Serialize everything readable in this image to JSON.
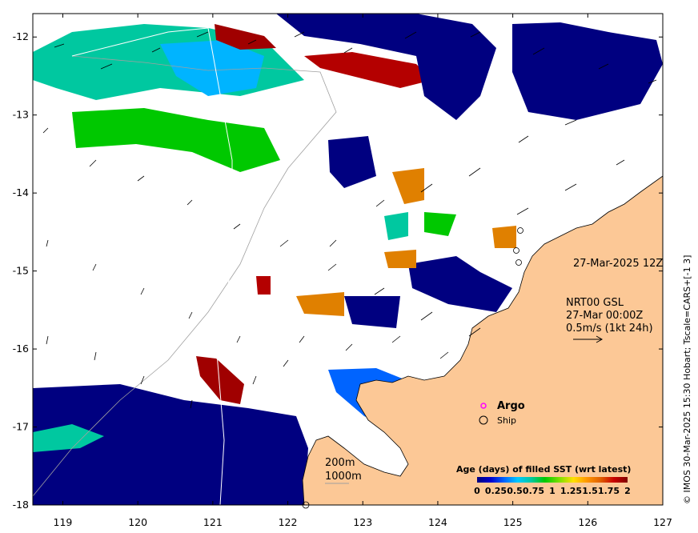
{
  "map": {
    "x_ticks": [
      "119",
      "120",
      "121",
      "122",
      "123",
      "124",
      "125",
      "126",
      "127"
    ],
    "y_ticks": [
      "-12",
      "-13",
      "-14",
      "-15",
      "-16",
      "-17",
      "-18"
    ],
    "x_range": [
      118.6,
      127.0
    ],
    "y_range": [
      -18.0,
      -11.7
    ],
    "land_color": "#fcc896",
    "ocean_color": "#ffffff"
  },
  "annotations": {
    "forecast_time": "27-Mar-2025 12Z",
    "product": "NRT00 GSL",
    "product_time": "27-Mar 00:00Z",
    "scale": "0.5m/s (1kt 24h)",
    "contour_200": "200m",
    "contour_1000": "1000m",
    "argo_label": "Argo",
    "ship_label": "Ship",
    "credit": "© IMOS 30-Mar-2025 15:30 Hobart; Tscale=CARS+[-1 3]"
  },
  "legend": {
    "title": "Age (days) of filled SST (wrt latest)",
    "tick_labels": [
      "0",
      "0.25",
      "0.5",
      "0.75",
      "1",
      "1.25",
      "1.5",
      "1.75",
      "2"
    ],
    "colors": [
      "#000080",
      "#0000cd",
      "#0064ff",
      "#00c8ff",
      "#00c8a0",
      "#00c800",
      "#80e000",
      "#ffe000",
      "#ff9600",
      "#e06000",
      "#c80000",
      "#800000"
    ]
  }
}
